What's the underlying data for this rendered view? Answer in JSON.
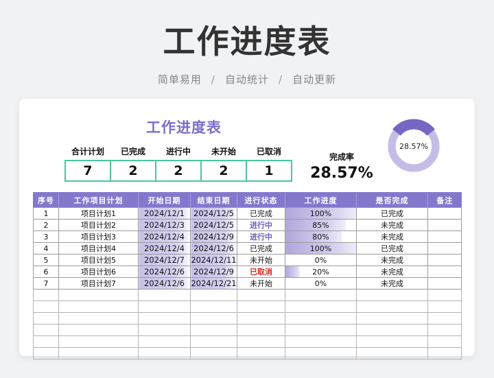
{
  "page": {
    "title": "工作进度表",
    "subtitle_items": [
      "简单易用",
      "自动统计",
      "自动更新"
    ],
    "subtitle_separator": "/"
  },
  "card": {
    "title": "工作进度表",
    "stats": [
      {
        "label": "合计计划",
        "value": "7"
      },
      {
        "label": "已完成",
        "value": "2"
      },
      {
        "label": "进行中",
        "value": "2"
      },
      {
        "label": "未开始",
        "value": "2"
      },
      {
        "label": "已取消",
        "value": "1"
      }
    ],
    "completion": {
      "label": "完成率",
      "value": "28.57%"
    },
    "donut": {
      "type": "donut",
      "center_label": "28.57%",
      "percent": 28.57,
      "dark_color": "#7568c4",
      "light_color": "#c6bde7"
    }
  },
  "colors": {
    "accent_purple": "#8378cc",
    "title_purple": "#7b6ec9",
    "stat_border_green": "#49c5a0",
    "status_purple": "#6c5ebf",
    "status_red": "#e02525",
    "page_bg": "#f1f2f4"
  },
  "table": {
    "headers": [
      "序号",
      "工作项目计划",
      "开始日期",
      "结束日期",
      "进行状态",
      "工作进度",
      "是否完成",
      "备注"
    ],
    "rows": [
      {
        "no": "1",
        "project": "项目计划1",
        "start": "2024/12/1",
        "end": "2024/12/5",
        "status": "已完成",
        "status_type": "done",
        "progress": "100%",
        "progress_pct": 100,
        "complete": "已完成",
        "note": ""
      },
      {
        "no": "2",
        "project": "项目计划2",
        "start": "2024/12/3",
        "end": "2024/12/5",
        "status": "进行中",
        "status_type": "progress",
        "progress": "85%",
        "progress_pct": 85,
        "complete": "未完成",
        "note": ""
      },
      {
        "no": "3",
        "project": "项目计划3",
        "start": "2024/12/4",
        "end": "2024/12/9",
        "status": "进行中",
        "status_type": "progress",
        "progress": "80%",
        "progress_pct": 80,
        "complete": "未完成",
        "note": ""
      },
      {
        "no": "4",
        "project": "项目计划4",
        "start": "2024/12/4",
        "end": "2024/12/6",
        "status": "已完成",
        "status_type": "done",
        "progress": "100%",
        "progress_pct": 100,
        "complete": "已完成",
        "note": ""
      },
      {
        "no": "5",
        "project": "项目计划5",
        "start": "2024/12/7",
        "end": "2024/12/11",
        "status": "未开始",
        "status_type": "notstart",
        "progress": "0%",
        "progress_pct": 0,
        "complete": "未完成",
        "note": ""
      },
      {
        "no": "6",
        "project": "项目计划6",
        "start": "2024/12/6",
        "end": "2024/12/9",
        "status": "已取消",
        "status_type": "cancel",
        "progress": "20%",
        "progress_pct": 20,
        "complete": "未完成",
        "note": ""
      },
      {
        "no": "7",
        "project": "项目计划7",
        "start": "2024/12/6",
        "end": "2024/12/21",
        "status": "未开始",
        "status_type": "notstart",
        "progress": "0%",
        "progress_pct": 0,
        "complete": "未完成",
        "note": ""
      }
    ],
    "empty_row_count": 6
  }
}
